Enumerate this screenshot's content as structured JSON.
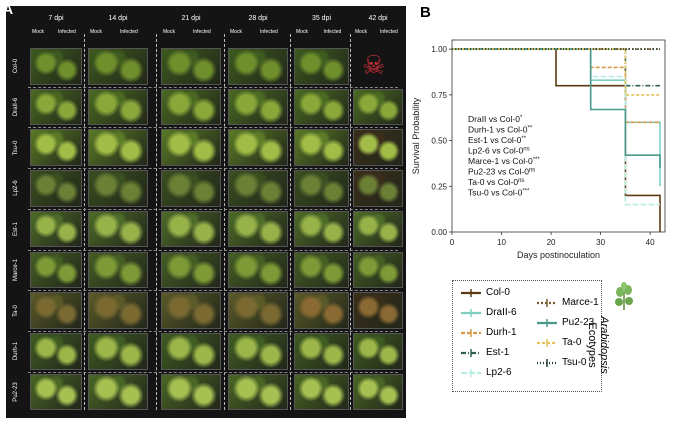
{
  "panel_a": {
    "label": "A",
    "timepoints": [
      "7 dpi",
      "14 dpi",
      "21 dpi",
      "28 dpi",
      "35 dpi",
      "42 dpi"
    ],
    "col_mock": "Mock",
    "col_infected": "Infected",
    "ecotypes": [
      "Col-0",
      "DraII-6",
      "Tsu-0",
      "Lp2-6",
      "Est-1",
      "Marce-1",
      "Ta-0",
      "Durh-1",
      "Pu2-23"
    ],
    "skull_symbol": "☠"
  },
  "panel_b": {
    "label": "B",
    "comparisons": [
      {
        "text": "DraII vs Col-0",
        "sig": "*"
      },
      {
        "text": "Durh-1 vs Col-0",
        "sig": "**"
      },
      {
        "text": "Est-1 vs Col-0",
        "sig": "**"
      },
      {
        "text": "Lp2-6 vs Col-0",
        "sig": "ns"
      },
      {
        "text": "Marce-1 vs Col-0",
        "sig": "***"
      },
      {
        "text": "Pu2-23 vs Col-0",
        "sig": "ns"
      },
      {
        "text": "Ta-0 vs Col-0",
        "sig": "ns"
      },
      {
        "text": "Tsu-0 vs Col-0",
        "sig": "***"
      }
    ],
    "legend_title": "Arabidopsis Ecotypes",
    "legend_title_italic": "Arabidopsis",
    "legend_title_rest": "Ecotypes",
    "legend": [
      {
        "name": "Col-0",
        "color": "#5a3a12",
        "dash": "none"
      },
      {
        "name": "DraII-6",
        "color": "#7fcfc0",
        "dash": "none"
      },
      {
        "name": "Durh-1",
        "color": "#d79a4c",
        "dash": "4,2"
      },
      {
        "name": "Est-1",
        "color": "#2e5f56",
        "dash": "5,2,1,2"
      },
      {
        "name": "Lp2-6",
        "color": "#b8ece2",
        "dash": "6,2"
      },
      {
        "name": "Marce-1",
        "color": "#7a5a2a",
        "dash": "2,2"
      },
      {
        "name": "Pu2-23",
        "color": "#4a9a8c",
        "dash": "none"
      },
      {
        "name": "Ta-0",
        "color": "#e7c25a",
        "dash": "3,2"
      },
      {
        "name": "Tsu-0",
        "color": "#1e3d33",
        "dash": "1,2"
      }
    ]
  },
  "chart_data": {
    "type": "line",
    "title": "",
    "xlabel": "Days postinoculation",
    "ylabel": "Survival Probability",
    "xlim": [
      0,
      43
    ],
    "ylim": [
      0,
      1.05
    ],
    "xticks": [
      0,
      10,
      20,
      30,
      40
    ],
    "yticks": [
      0.0,
      0.25,
      0.5,
      0.75,
      1.0
    ],
    "ytick_labels": [
      "0.00",
      "0.25",
      "0.50",
      "0.75",
      "1.00"
    ],
    "series": [
      {
        "name": "Col-0",
        "color": "#5a3a12",
        "dash": "none",
        "points": [
          [
            0,
            1.0
          ],
          [
            21,
            1.0
          ],
          [
            21,
            0.8
          ],
          [
            35,
            0.8
          ],
          [
            35,
            0.2
          ],
          [
            42,
            0.2
          ],
          [
            42,
            0.0
          ]
        ]
      },
      {
        "name": "DraII-6",
        "color": "#7fcfc0",
        "dash": "none",
        "points": [
          [
            0,
            1.0
          ],
          [
            28,
            1.0
          ],
          [
            28,
            0.83
          ],
          [
            35,
            0.83
          ],
          [
            35,
            0.6
          ],
          [
            42,
            0.6
          ],
          [
            42,
            0.25
          ]
        ]
      },
      {
        "name": "Durh-1",
        "color": "#d79a4c",
        "dash": "4,2",
        "points": [
          [
            0,
            1.0
          ],
          [
            28,
            1.0
          ],
          [
            28,
            0.9
          ],
          [
            35,
            0.9
          ],
          [
            35,
            0.6
          ],
          [
            42,
            0.6
          ]
        ]
      },
      {
        "name": "Est-1",
        "color": "#2e5f56",
        "dash": "5,2,1,2",
        "points": [
          [
            0,
            1.0
          ],
          [
            35,
            1.0
          ],
          [
            35,
            0.8
          ],
          [
            42,
            0.8
          ]
        ]
      },
      {
        "name": "Lp2-6",
        "color": "#b8ece2",
        "dash": "6,2",
        "points": [
          [
            0,
            1.0
          ],
          [
            28,
            1.0
          ],
          [
            28,
            0.85
          ],
          [
            35,
            0.85
          ],
          [
            35,
            0.15
          ],
          [
            42,
            0.15
          ]
        ]
      },
      {
        "name": "Marce-1",
        "color": "#7a5a2a",
        "dash": "2,2",
        "points": [
          [
            0,
            1.0
          ],
          [
            42,
            1.0
          ]
        ]
      },
      {
        "name": "Pu2-23",
        "color": "#4a9a8c",
        "dash": "none",
        "points": [
          [
            0,
            1.0
          ],
          [
            28,
            1.0
          ],
          [
            28,
            0.67
          ],
          [
            35,
            0.67
          ],
          [
            35,
            0.42
          ],
          [
            42,
            0.42
          ],
          [
            42,
            0.35
          ]
        ]
      },
      {
        "name": "Ta-0",
        "color": "#e7c25a",
        "dash": "3,2",
        "points": [
          [
            0,
            1.0
          ],
          [
            35,
            1.0
          ],
          [
            35,
            0.75
          ],
          [
            42,
            0.75
          ]
        ]
      },
      {
        "name": "Tsu-0",
        "color": "#1e3d33",
        "dash": "1,2",
        "points": [
          [
            0,
            1.0
          ],
          [
            42,
            1.0
          ]
        ]
      }
    ]
  }
}
